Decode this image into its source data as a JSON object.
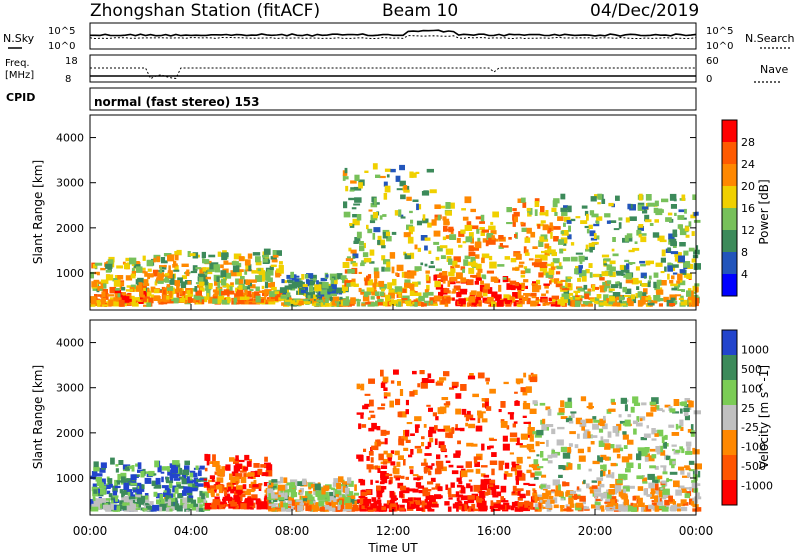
{
  "header": {
    "station": "Zhongshan Station (fitACF)",
    "beam": "Beam 10",
    "date": "04/Dec/2019"
  },
  "noise_panel": {
    "left_label": "N.Sky",
    "right_label": "N.Search",
    "left_ticks": [
      "10^5",
      "10^0"
    ],
    "right_ticks": [
      "10^5",
      "10^0"
    ]
  },
  "freq_panel": {
    "left_label_1": "Freq.",
    "left_label_2": "[MHz]",
    "right_label": "Nave",
    "left_ticks": [
      "18",
      "8"
    ],
    "right_ticks": [
      "60",
      "0"
    ]
  },
  "cpid": {
    "label": "CPID",
    "text": "normal (fast stereo) 153"
  },
  "time_axis": {
    "ticks": [
      "00:00",
      "04:00",
      "08:00",
      "12:00",
      "16:00",
      "20:00",
      "00:00"
    ],
    "label": "Time UT"
  },
  "colors": {
    "power_scale": [
      "#0000ff",
      "#2255bb",
      "#3c8a5a",
      "#77c05a",
      "#f0d000",
      "#ff8800",
      "#ff5a00",
      "#ff0000"
    ],
    "velocity_scale": [
      "#2244cc",
      "#3c8a5a",
      "#7bcc55",
      "#c0c0c0",
      "#ff8800",
      "#ff5500",
      "#ff0000"
    ]
  },
  "chart_data": [
    {
      "type": "heatmap",
      "name_text": "Power",
      "ylabel": "Slant Range [km]",
      "xlabel": "Time UT",
      "y_ticks": [
        1000,
        2000,
        3000,
        4000
      ],
      "ylim": [
        180,
        4500
      ],
      "xlim_hours": [
        0,
        24
      ],
      "colorbar": {
        "title": "Power [dB]",
        "ticks": [
          "4",
          "8",
          "12",
          "16",
          "20",
          "24",
          "28"
        ],
        "range": [
          0,
          30
        ]
      },
      "scatter_regions": [
        {
          "t_start": 0.0,
          "t_end": 2.5,
          "r_min": 250,
          "r_max": 1300,
          "level": 0.55
        },
        {
          "t_start": 2.5,
          "t_end": 7.5,
          "r_min": 300,
          "r_max": 1400,
          "level": 0.5
        },
        {
          "t_start": 7.5,
          "t_end": 10.0,
          "r_min": 250,
          "r_max": 900,
          "level": 0.35
        },
        {
          "t_start": 10.0,
          "t_end": 13.5,
          "r_min": 250,
          "r_max": 3300,
          "level": 0.45
        },
        {
          "t_start": 13.5,
          "t_end": 18.5,
          "r_min": 250,
          "r_max": 2600,
          "level": 0.65
        },
        {
          "t_start": 18.5,
          "t_end": 24.0,
          "r_min": 250,
          "r_max": 2700,
          "level": 0.4
        }
      ]
    },
    {
      "type": "heatmap",
      "name_text": "Velocity",
      "ylabel": "Slant Range [km]",
      "xlabel": "Time UT",
      "y_ticks": [
        1000,
        2000,
        3000,
        4000
      ],
      "ylim": [
        180,
        4500
      ],
      "xlim_hours": [
        0,
        24
      ],
      "colorbar": {
        "title": "Velocity [m s^-1]",
        "ticks": [
          "1000",
          "500",
          "100",
          "25",
          "-25",
          "-100",
          "-500",
          "-1000"
        ],
        "range": [
          -1000,
          1000
        ]
      },
      "scatter_regions": [
        {
          "t_start": 0.0,
          "t_end": 4.5,
          "r_min": 250,
          "r_max": 1300,
          "level": 0.2
        },
        {
          "t_start": 4.5,
          "t_end": 7.0,
          "r_min": 300,
          "r_max": 1400,
          "level": 0.8
        },
        {
          "t_start": 7.0,
          "t_end": 10.5,
          "r_min": 250,
          "r_max": 900,
          "level": 0.45
        },
        {
          "t_start": 10.5,
          "t_end": 17.5,
          "r_min": 250,
          "r_max": 3300,
          "level": 0.8
        },
        {
          "t_start": 17.5,
          "t_end": 24.0,
          "r_min": 250,
          "r_max": 2700,
          "level": 0.45
        }
      ]
    }
  ]
}
